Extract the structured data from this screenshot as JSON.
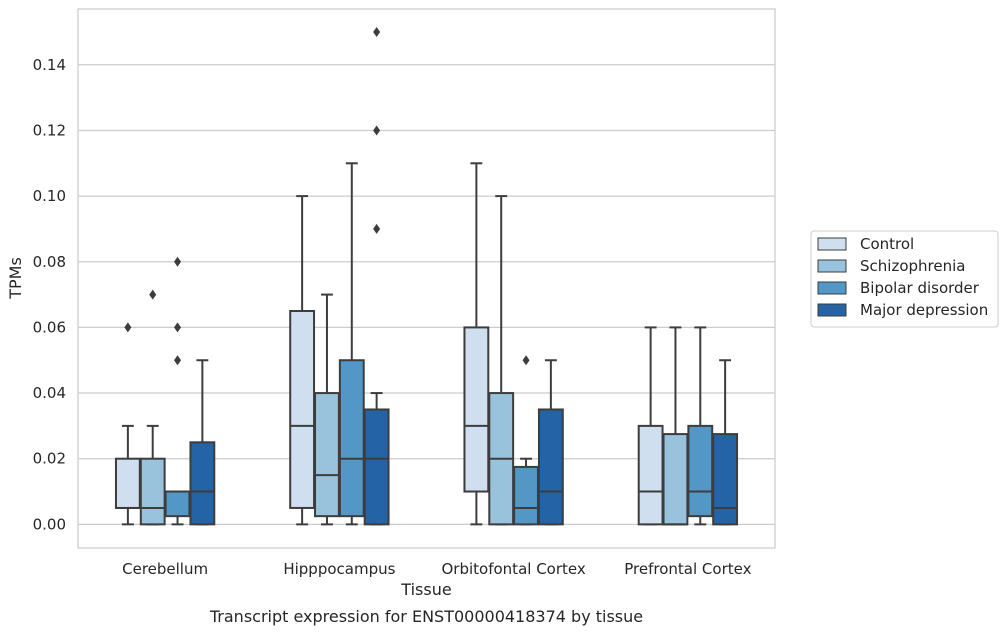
{
  "caption": "Transcript expression for ENST00000418374 by tissue",
  "chart_data": {
    "type": "box",
    "xlabel": "Tissue",
    "ylabel": "TPMs",
    "ylim": [
      -0.0072,
      0.157
    ],
    "yticks": [
      "0.00",
      "0.02",
      "0.04",
      "0.06",
      "0.08",
      "0.10",
      "0.12",
      "0.14"
    ],
    "grid": "horizontal",
    "legend_position": "right",
    "categories": [
      "Cerebellum",
      "Hipppocampus",
      "Orbitofontal Cortex",
      "Prefrontal Cortex"
    ],
    "colors": [
      "#cfdff0",
      "#99c3dd",
      "#5297c6",
      "#2363a6"
    ],
    "series": [
      {
        "name": "Control",
        "boxes": [
          {
            "whislo": 0.0,
            "q1": 0.005,
            "med": 0.005,
            "q3": 0.02,
            "whishi": 0.03,
            "fliers": [
              0.06
            ]
          },
          {
            "whislo": 0.0,
            "q1": 0.005,
            "med": 0.03,
            "q3": 0.065,
            "whishi": 0.1,
            "fliers": []
          },
          {
            "whislo": 0.0,
            "q1": 0.01,
            "med": 0.03,
            "q3": 0.06,
            "whishi": 0.11,
            "fliers": []
          },
          {
            "whislo": 0.0,
            "q1": 0.0,
            "med": 0.01,
            "q3": 0.03,
            "whishi": 0.06,
            "fliers": []
          }
        ]
      },
      {
        "name": "Schizophrenia",
        "boxes": [
          {
            "whislo": 0.0,
            "q1": 0.0,
            "med": 0.005,
            "q3": 0.02,
            "whishi": 0.03,
            "fliers": [
              0.07
            ]
          },
          {
            "whislo": 0.0,
            "q1": 0.0025,
            "med": 0.015,
            "q3": 0.04,
            "whishi": 0.07,
            "fliers": []
          },
          {
            "whislo": 0.0,
            "q1": 0.0,
            "med": 0.02,
            "q3": 0.04,
            "whishi": 0.1,
            "fliers": []
          },
          {
            "whislo": 0.0,
            "q1": 0.0,
            "med": 0.0,
            "q3": 0.0275,
            "whishi": 0.06,
            "fliers": []
          }
        ]
      },
      {
        "name": "Bipolar disorder",
        "boxes": [
          {
            "whislo": 0.0,
            "q1": 0.0025,
            "med": 0.01,
            "q3": 0.01,
            "whishi": 0.01,
            "fliers": [
              0.05,
              0.06,
              0.08
            ]
          },
          {
            "whislo": 0.0,
            "q1": 0.0025,
            "med": 0.02,
            "q3": 0.05,
            "whishi": 0.11,
            "fliers": []
          },
          {
            "whislo": 0.0,
            "q1": 0.0,
            "med": 0.005,
            "q3": 0.0175,
            "whishi": 0.02,
            "fliers": [
              0.05
            ]
          },
          {
            "whislo": 0.0,
            "q1": 0.0025,
            "med": 0.01,
            "q3": 0.03,
            "whishi": 0.06,
            "fliers": []
          }
        ]
      },
      {
        "name": "Major depression",
        "boxes": [
          {
            "whislo": 0.0,
            "q1": 0.0,
            "med": 0.01,
            "q3": 0.025,
            "whishi": 0.05,
            "fliers": []
          },
          {
            "whislo": 0.0,
            "q1": 0.0,
            "med": 0.02,
            "q3": 0.035,
            "whishi": 0.04,
            "fliers": [
              0.09,
              0.12,
              0.15
            ]
          },
          {
            "whislo": 0.0,
            "q1": 0.0,
            "med": 0.01,
            "q3": 0.035,
            "whishi": 0.05,
            "fliers": []
          },
          {
            "whislo": 0.0,
            "q1": 0.0,
            "med": 0.005,
            "q3": 0.0275,
            "whishi": 0.05,
            "fliers": []
          }
        ]
      }
    ]
  }
}
